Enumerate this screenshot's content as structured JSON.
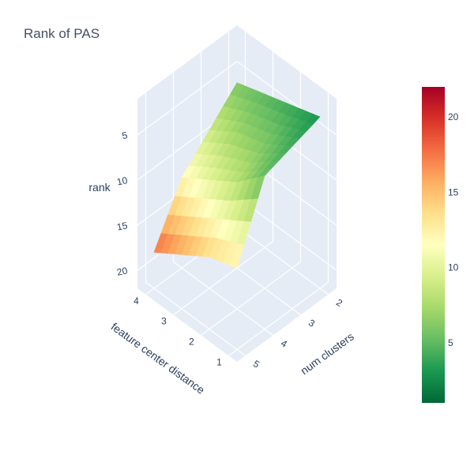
{
  "chart_data": {
    "type": "surface",
    "title": "Rank of PAS",
    "x_axis": {
      "label": "feature center distance",
      "ticks": [
        1,
        2,
        3,
        4
      ]
    },
    "y_axis": {
      "label": "num clusters",
      "ticks": [
        2,
        3,
        4,
        5
      ]
    },
    "z_axis": {
      "label": "rank",
      "ticks": [
        5,
        10,
        15,
        20
      ],
      "reversed": true
    },
    "x": [
      1,
      2,
      3,
      4
    ],
    "y": [
      2,
      3,
      4,
      5
    ],
    "z": [
      [
        3,
        4,
        5,
        13
      ],
      [
        4,
        6,
        8,
        14
      ],
      [
        5,
        7,
        10,
        16
      ],
      [
        6,
        9,
        12,
        18
      ]
    ],
    "colorscale": [
      "#006837",
      "#1a9850",
      "#66bd63",
      "#a6d96a",
      "#d9ef8b",
      "#ffffbf",
      "#fee08b",
      "#fdae61",
      "#f46d43",
      "#d73027",
      "#a50026"
    ],
    "colorbar": {
      "range": [
        1,
        22
      ],
      "ticks": [
        5,
        10,
        15,
        20
      ],
      "placement": "right"
    }
  }
}
